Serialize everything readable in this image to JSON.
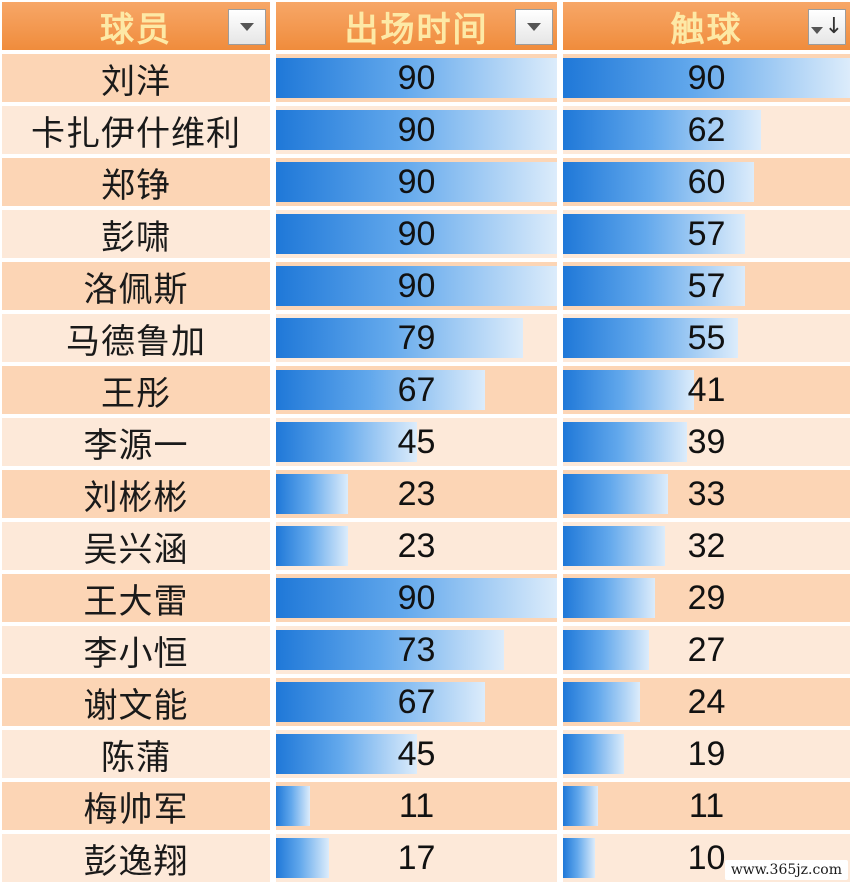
{
  "table": {
    "headers": {
      "player": "球员",
      "minutes": "出场时间",
      "touches": "触球"
    },
    "header_controls": {
      "player": "filter-dropdown",
      "minutes": "filter-dropdown",
      "touches": "sorted-descending",
      "sort_glyph": "↓"
    },
    "max_value": 90,
    "rows": [
      {
        "name": "刘洋",
        "minutes": 90,
        "touches": 90
      },
      {
        "name": "卡扎伊什维利",
        "minutes": 90,
        "touches": 62
      },
      {
        "name": "郑铮",
        "minutes": 90,
        "touches": 60
      },
      {
        "name": "彭啸",
        "minutes": 90,
        "touches": 57
      },
      {
        "name": "洛佩斯",
        "minutes": 90,
        "touches": 57
      },
      {
        "name": "马德鲁加",
        "minutes": 79,
        "touches": 55
      },
      {
        "name": "王彤",
        "minutes": 67,
        "touches": 41
      },
      {
        "name": "李源一",
        "minutes": 45,
        "touches": 39
      },
      {
        "name": "刘彬彬",
        "minutes": 23,
        "touches": 33
      },
      {
        "name": "吴兴涵",
        "minutes": 23,
        "touches": 32
      },
      {
        "name": "王大雷",
        "minutes": 90,
        "touches": 29
      },
      {
        "name": "李小恒",
        "minutes": 73,
        "touches": 27
      },
      {
        "name": "谢文能",
        "minutes": 67,
        "touches": 24
      },
      {
        "name": "陈蒲",
        "minutes": 45,
        "touches": 19
      },
      {
        "name": "梅帅军",
        "minutes": 11,
        "touches": 11
      },
      {
        "name": "彭逸翔",
        "minutes": 17,
        "touches": 10
      }
    ]
  },
  "watermark": "www.365jz.com",
  "colors": {
    "header_bg": "#f08c3c",
    "header_text": "#fde9a6",
    "row_dark": "#fcd5b5",
    "row_light": "#fde9d9",
    "bar_start": "#1f78d8",
    "bar_end": "#dcecfb"
  }
}
